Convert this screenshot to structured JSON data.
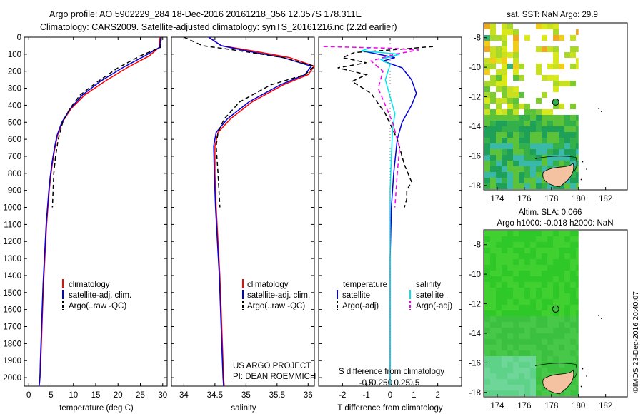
{
  "header": {
    "line1": "Argo profile: AO 5902229_284 18-Dec-2016 20161218_356 12.357S 178.311E",
    "line2": "Climatology: CARS2009. Satellite-adjusted climatology: synTS_20161216.nc (2.2d earlier)"
  },
  "colors": {
    "climatology": "#ff0000",
    "satellite": "#0000dd",
    "argo": "#000000",
    "salinity_satellite": "#00e5ee",
    "salinity_argo": "#ee00ee",
    "land": "#f4c2a0"
  },
  "chart_data": [
    {
      "id": "temperature",
      "type": "line",
      "xlabel": "temperature (deg C)",
      "ylabel": "",
      "xlim": [
        -1,
        31
      ],
      "ylim": [
        2050,
        0
      ],
      "xticks": [
        0,
        5,
        10,
        15,
        20,
        25,
        30
      ],
      "yticks": [
        0,
        100,
        200,
        300,
        400,
        500,
        600,
        700,
        800,
        900,
        1000,
        1100,
        1200,
        1300,
        1400,
        1500,
        1600,
        1700,
        1800,
        1900,
        2000
      ],
      "series": [
        {
          "name": "climatology",
          "color": "#ff0000",
          "dash": "",
          "x": [
            29.4,
            29.2,
            27,
            22,
            17,
            12.5,
            9.5,
            7.5,
            6.4,
            5.8,
            5.3,
            4.9,
            4.6,
            4.3,
            4.0,
            3.8,
            3.6,
            3.3,
            3.1,
            2.9,
            2.7,
            2.5,
            2.4,
            2.3
          ],
          "y": [
            0,
            60,
            110,
            180,
            260,
            340,
            420,
            500,
            580,
            660,
            740,
            820,
            900,
            1000,
            1100,
            1200,
            1300,
            1450,
            1600,
            1750,
            1900,
            2000,
            2030,
            2050
          ]
        },
        {
          "name": "satellite-adj. clim.",
          "color": "#0000dd",
          "dash": "",
          "x": [
            29.6,
            29.3,
            26,
            21,
            16,
            12,
            9.3,
            7.4,
            6.3,
            5.7,
            5.2,
            4.8,
            4.5,
            4.2,
            3.9,
            3.7,
            3.5,
            3.2,
            3.0,
            2.8,
            2.6,
            2.5,
            2.4,
            2.3
          ],
          "y": [
            0,
            60,
            110,
            180,
            260,
            340,
            420,
            500,
            580,
            660,
            740,
            820,
            900,
            1000,
            1100,
            1200,
            1300,
            1450,
            1600,
            1750,
            1900,
            2000,
            2030,
            2050
          ]
        },
        {
          "name": "Argo(..raw -QC)",
          "color": "#000000",
          "dash": "6,4",
          "x": [
            29.7,
            29.5,
            25,
            20,
            15.5,
            11.5,
            9.2,
            7.6,
            6.6,
            6.0,
            5.6,
            5.3
          ],
          "y": [
            0,
            60,
            110,
            180,
            260,
            340,
            420,
            500,
            600,
            700,
            800,
            1000
          ]
        }
      ],
      "legend": [
        "climatology",
        "satellite-adj. clim.",
        "Argo(..raw -QC)"
      ]
    },
    {
      "id": "salinity",
      "type": "line",
      "xlabel": "salinity",
      "xlim": [
        33.8,
        36.1
      ],
      "ylim": [
        2050,
        0
      ],
      "xticks": [
        34,
        34.5,
        35,
        35.5,
        36
      ],
      "xticklabels": [
        "34",
        "34.5",
        "35",
        "35.5",
        "36"
      ],
      "series": [
        {
          "name": "climatology",
          "color": "#ff0000",
          "dash": "",
          "x": [
            34.4,
            34.6,
            35.1,
            35.7,
            36.1,
            36.0,
            35.6,
            35.1,
            34.75,
            34.55,
            34.5,
            34.5,
            34.52,
            34.55,
            34.58,
            34.6,
            34.62,
            34.64,
            34.65
          ],
          "y": [
            0,
            50,
            80,
            120,
            170,
            220,
            280,
            380,
            480,
            560,
            640,
            800,
            1000,
            1200,
            1400,
            1600,
            1800,
            2000,
            2050
          ]
        },
        {
          "name": "satellite-adj. clim.",
          "color": "#0000dd",
          "dash": "",
          "x": [
            34.4,
            34.6,
            35.0,
            35.6,
            36.05,
            35.95,
            35.55,
            35.05,
            34.7,
            34.52,
            34.48,
            34.49,
            34.51,
            34.54,
            34.57,
            34.59,
            34.61,
            34.63,
            34.64
          ],
          "y": [
            0,
            50,
            80,
            120,
            170,
            220,
            280,
            380,
            480,
            560,
            640,
            800,
            1000,
            1200,
            1400,
            1600,
            1800,
            2000,
            2050
          ]
        },
        {
          "name": "Argo(..raw -QC)",
          "color": "#000000",
          "dash": "6,4",
          "x": [
            34.0,
            34.3,
            34.9,
            35.6,
            36.1,
            35.95,
            35.4,
            34.9,
            34.65,
            34.55,
            34.52,
            34.55,
            34.58
          ],
          "y": [
            0,
            50,
            80,
            120,
            170,
            220,
            280,
            380,
            480,
            560,
            640,
            800,
            1000
          ]
        }
      ],
      "legend": [
        "climatology",
        "satellite-adj. clim.",
        "Argo(..raw -QC)"
      ],
      "annotation": {
        "line1": "US ARGO PROJECT",
        "line2": "PI: DEAN ROEMMICH"
      }
    },
    {
      "id": "differences",
      "type": "line",
      "xlabel": "T difference from climatology",
      "xlabel_top": "S difference from climatology",
      "xlim": [
        -3,
        3
      ],
      "ylim": [
        2050,
        0
      ],
      "xticks": [
        -2,
        -1,
        0,
        1,
        2
      ],
      "s_xticks": [
        -1,
        -0.5,
        0,
        0.5,
        1
      ],
      "s_xticklabels": [
        "-0.5",
        "-0.25",
        "0",
        "0.25",
        "0.5"
      ],
      "series": [
        {
          "name": "temperature satellite",
          "color": "#0000dd",
          "dash": "",
          "x": [
            -1.2,
            -0.5,
            0.2,
            -0.3,
            0.5,
            0.9,
            1.1,
            0.9,
            0.5,
            0.3,
            0.15,
            0.05,
            0.0,
            0.0,
            0.0,
            0.0
          ],
          "y": [
            80,
            100,
            120,
            140,
            180,
            250,
            330,
            400,
            500,
            600,
            800,
            1000,
            1300,
            1600,
            1900,
            2050
          ]
        },
        {
          "name": "temperature Argo(-adj)",
          "color": "#000000",
          "dash": "6,4",
          "x": [
            1.8,
            0.5,
            -1.5,
            -2.0,
            -1.0,
            -2.2,
            -1.0,
            -1.6,
            -0.8,
            -0.2,
            0.3,
            0.6,
            0.9,
            0.7,
            0.7,
            0.6
          ],
          "y": [
            55,
            70,
            90,
            120,
            150,
            180,
            220,
            260,
            330,
            450,
            600,
            750,
            850,
            900,
            950,
            1000
          ]
        },
        {
          "name": "salinity satellite",
          "color": "#00e5ee",
          "dash": "",
          "x": [
            -0.8,
            -1.2,
            0.4,
            -0.4,
            0.0,
            -0.2,
            0.0,
            0.2,
            0.1,
            0.05,
            0.0,
            0.0,
            0.0,
            0.0,
            0.0
          ],
          "y": [
            60,
            80,
            100,
            130,
            160,
            250,
            350,
            450,
            550,
            700,
            900,
            1100,
            1400,
            1800,
            2050
          ]
        },
        {
          "name": "salinity Argo(-adj)",
          "color": "#ee00ee",
          "dash": "6,4",
          "x": [
            -2.8,
            0.0,
            1.2,
            0.2,
            -0.8,
            -0.3,
            -0.5,
            -0.2,
            0.1,
            0.4,
            0.3,
            0.2
          ],
          "y": [
            55,
            65,
            75,
            100,
            140,
            200,
            300,
            400,
            500,
            650,
            800,
            1000
          ]
        }
      ],
      "legend_titles": [
        "temperature",
        "salinity"
      ],
      "legend": [
        "satellite",
        "Argo(-adj)",
        "satellite",
        "Argo(-adj)"
      ]
    },
    {
      "id": "sst_map",
      "type": "heatmap",
      "title": "sat. SST: NaN Argo: 29.9",
      "xlim": [
        173,
        183.6
      ],
      "ylim": [
        -18.3,
        -7
      ],
      "xticks": [
        174,
        176,
        178,
        180,
        182
      ],
      "yticks": [
        -8,
        -10,
        -12,
        -14,
        -16,
        -18
      ],
      "marker": {
        "lon": 178.311,
        "lat": -12.357
      }
    },
    {
      "id": "sla_map",
      "type": "heatmap",
      "title": "Altim. SLA: 0.066",
      "subtitle": "Argo h1000: -0.018 h2000: NaN",
      "xlim": [
        173,
        183.6
      ],
      "ylim": [
        -18.3,
        -7
      ],
      "xticks": [
        174,
        176,
        178,
        180,
        182
      ],
      "yticks": [
        -8,
        -10,
        -12,
        -14,
        -16,
        -18
      ],
      "marker": {
        "lon": 178.311,
        "lat": -12.357
      }
    }
  ],
  "footer": {
    "stamp": "©IMOS 23-Dec-2016 20:40:07"
  }
}
